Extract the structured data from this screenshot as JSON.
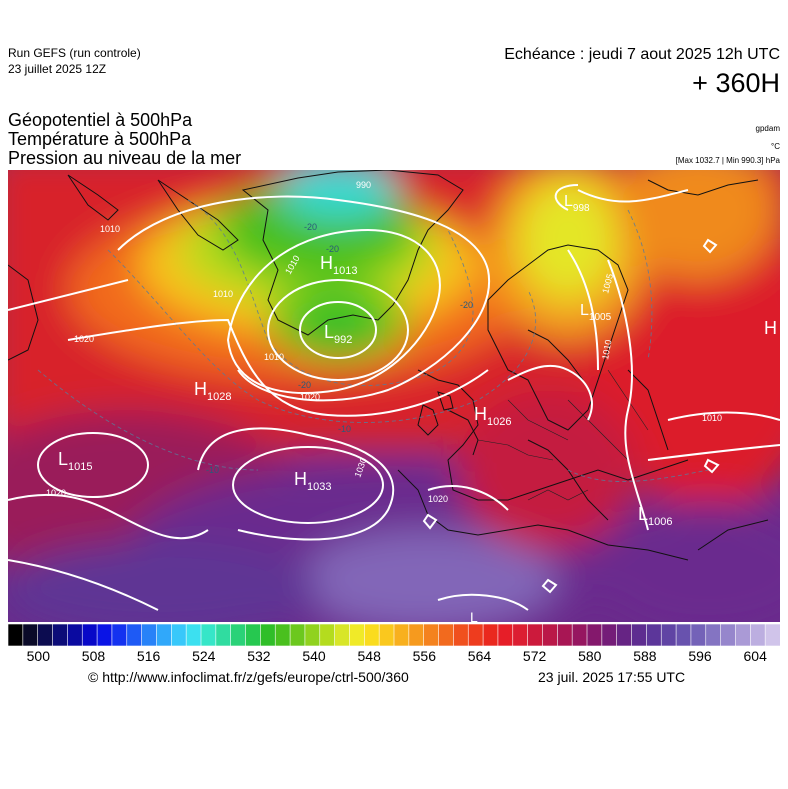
{
  "header": {
    "run_title": "Run GEFS (run controle)",
    "run_date": "23 juillet 2025 12Z",
    "forecast_time": "Echéance : jeudi 7 aout 2025 12h UTC",
    "lead_time": "+ 360H"
  },
  "parameters": {
    "geopotential": "Géopotentiel à 500hPa",
    "temperature": "Température à 500hPa",
    "pressure": "Pression au niveau de la mer"
  },
  "units": {
    "geopotential": "gpdam",
    "temperature": "°C",
    "pressure": "[Max 1032.7 | Min 990.3] hPa"
  },
  "pressure_centers": [
    {
      "type": "H",
      "value": "1013"
    },
    {
      "type": "L",
      "value": "992"
    },
    {
      "type": "H",
      "value": "1028"
    },
    {
      "type": "H",
      "value": "1026"
    },
    {
      "type": "H",
      "value": "1033"
    },
    {
      "type": "L",
      "value": "1015"
    },
    {
      "type": "L",
      "value": "1006"
    },
    {
      "type": "L",
      "value": "1005"
    },
    {
      "type": "L",
      "value": "998"
    },
    {
      "type": "H",
      "value": ""
    },
    {
      "type": "L",
      "value": ""
    }
  ],
  "isobar_labels": [
    "1010",
    "1010",
    "1010",
    "1020",
    "1020",
    "1020",
    "1020",
    "1030",
    "1010",
    "1010",
    "1005",
    "990",
    "1010"
  ],
  "temperature_labels": [
    "-20",
    "-20",
    "-20",
    "-20",
    "-10",
    "-10"
  ],
  "legend": {
    "labels": [
      "500",
      "508",
      "516",
      "524",
      "532",
      "540",
      "548",
      "556",
      "564",
      "572",
      "580",
      "588",
      "596",
      "604"
    ],
    "colors": [
      "#000000",
      "#0a0a28",
      "#0c0c50",
      "#0c0c78",
      "#0a0aa0",
      "#0808c8",
      "#0a14e6",
      "#1432f0",
      "#1e5af5",
      "#2882f8",
      "#30a8fa",
      "#38c8fa",
      "#3ce0f0",
      "#36e6c8",
      "#30dca0",
      "#2ad278",
      "#26c850",
      "#30be28",
      "#4ac01e",
      "#6cc81e",
      "#90d21e",
      "#b4dc1e",
      "#d8e628",
      "#f0ea28",
      "#fadc1e",
      "#fac81e",
      "#f8b01e",
      "#f69a1e",
      "#f4821e",
      "#f26a1e",
      "#f0501e",
      "#ee3c1e",
      "#ea281e",
      "#e61e28",
      "#dc1e32",
      "#cc1a3c",
      "#ba1848",
      "#a81654",
      "#961660",
      "#84186c",
      "#741c78",
      "#662484",
      "#5e2c90",
      "#5c369a",
      "#6044a4",
      "#6852ae",
      "#7462b8",
      "#8474c2",
      "#9686cc",
      "#aa9ad6",
      "#bcaee0",
      "#d0c4ea"
    ]
  },
  "footer": {
    "url": "© http://www.infoclimat.fr/z/gefs/europe/ctrl-500/360",
    "generated": "23 juil. 2025 17:55 UTC"
  }
}
